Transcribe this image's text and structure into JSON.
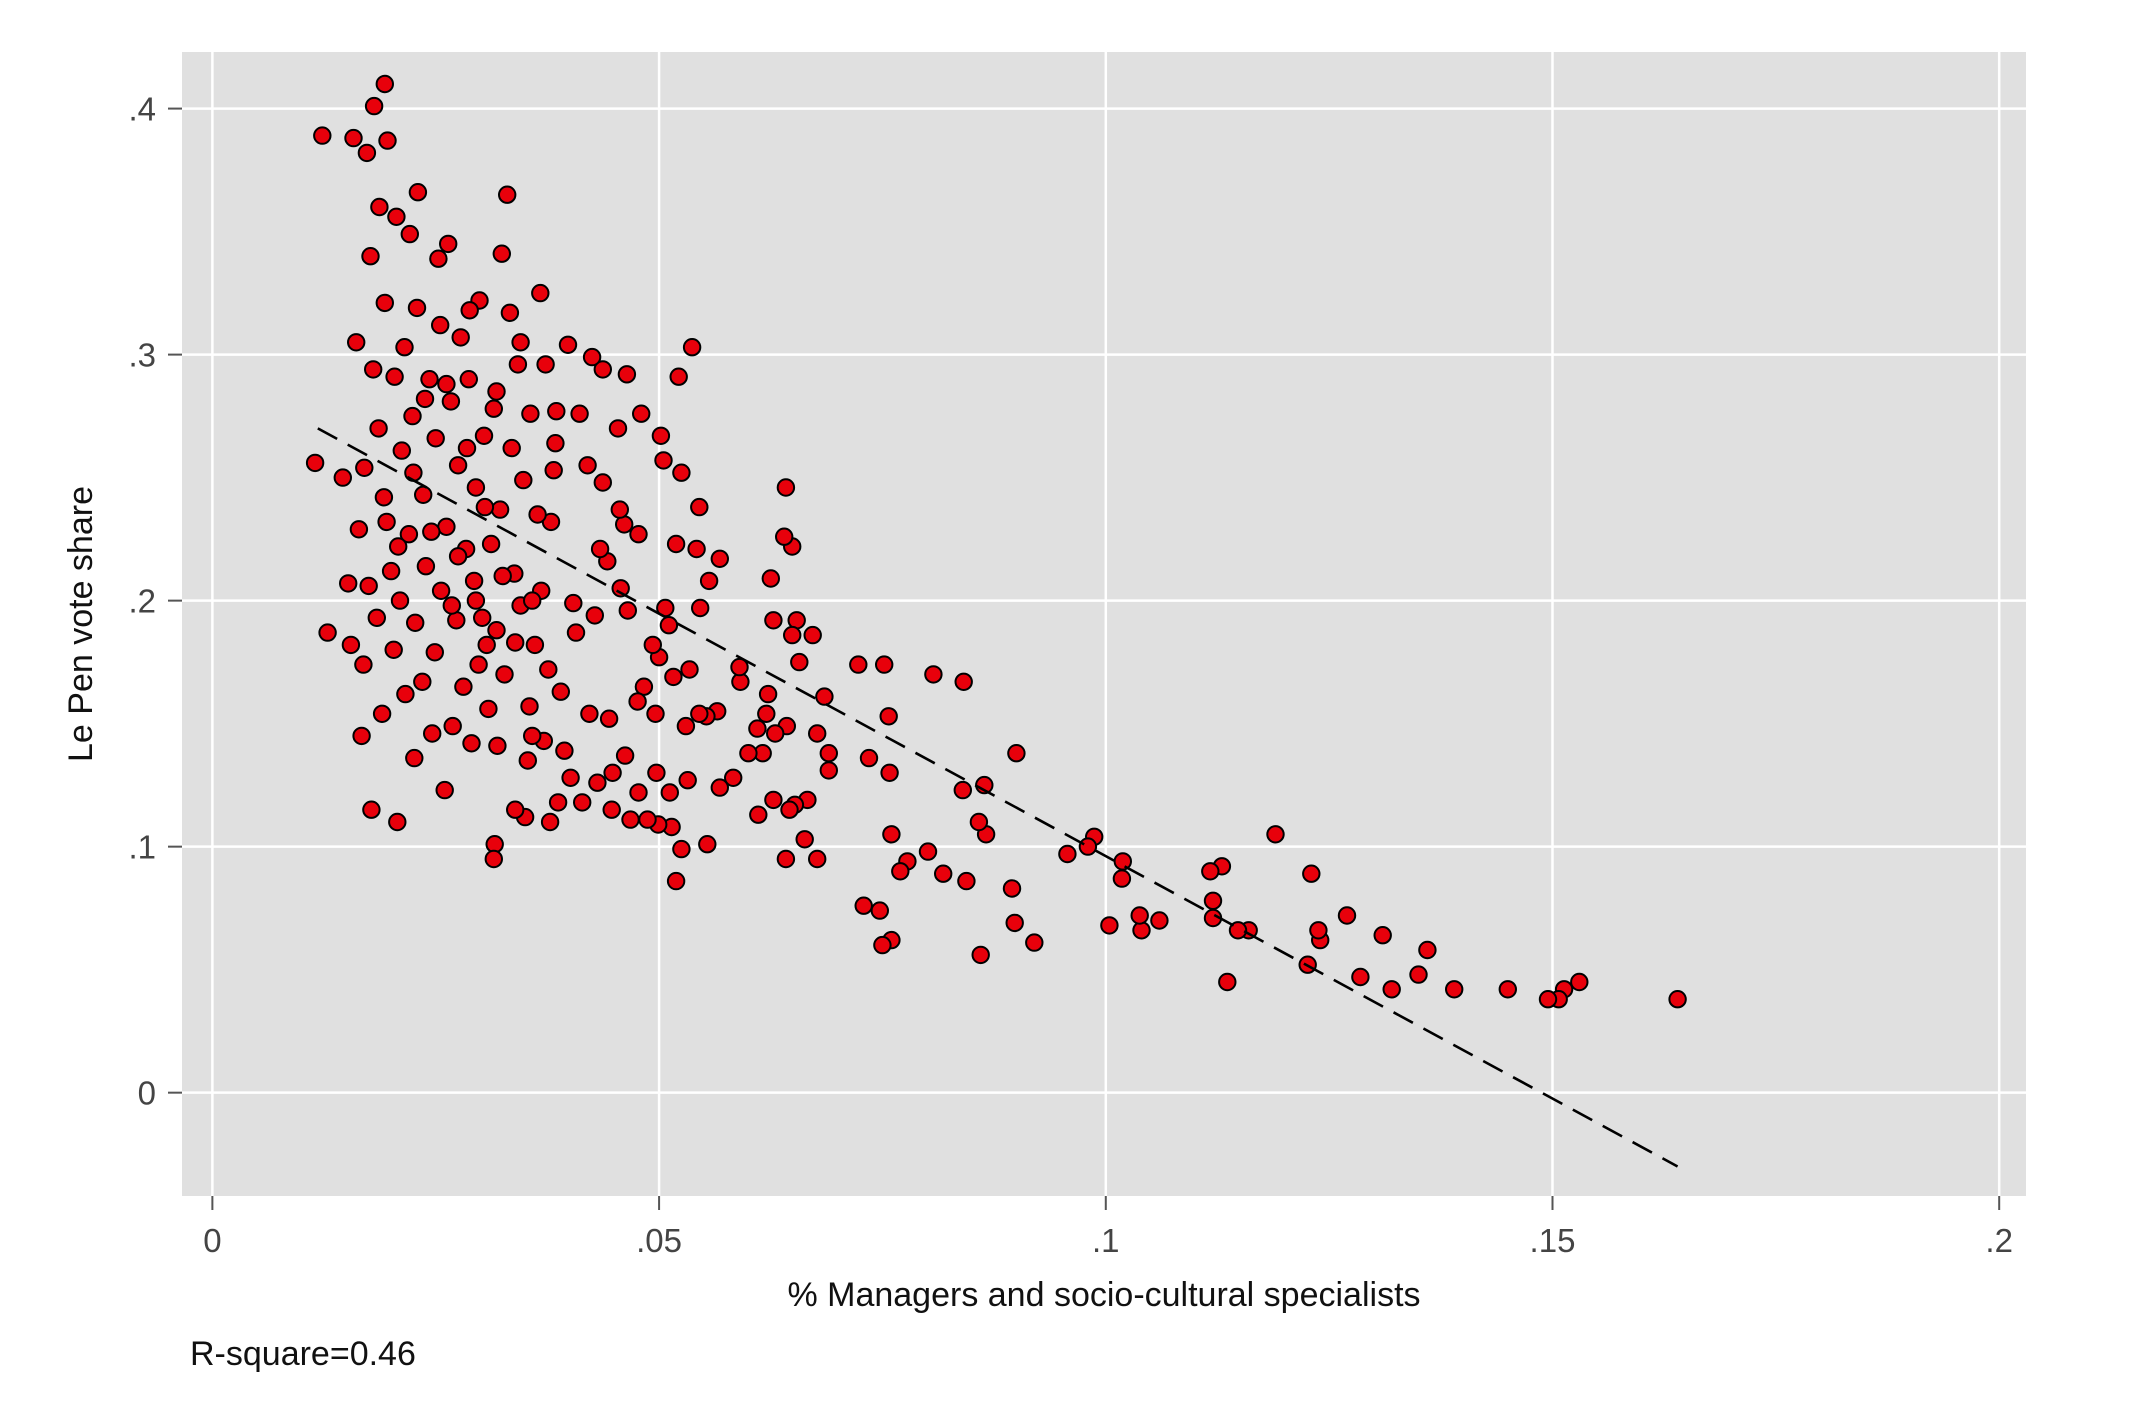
{
  "chart_data": {
    "type": "scatter",
    "title": "",
    "xlabel": "% Managers and socio-cultural specialists",
    "ylabel": "Le Pen vote share",
    "note": "R-square=0.46",
    "xlim": [
      -0.0034,
      0.203
    ],
    "ylim": [
      -0.042,
      0.423
    ],
    "xticks": [
      0,
      0.05,
      0.1,
      0.15,
      0.2
    ],
    "xtick_labels": [
      "0",
      ".05",
      ".1",
      ".15",
      ".2"
    ],
    "yticks": [
      0,
      0.1,
      0.2,
      0.3,
      0.4
    ],
    "ytick_labels": [
      "0",
      ".1",
      ".2",
      ".3",
      ".4"
    ],
    "grid": true,
    "colors": {
      "marker": "#e8000b",
      "marker_edge": "#000000",
      "plot_bg": "#e0e0e0",
      "grid": "#ffffff",
      "fit_line": "#000000"
    },
    "fit_line": {
      "style": "dashed",
      "x": [
        0.0118,
        0.164
      ],
      "y": [
        0.27,
        -0.03
      ]
    },
    "points": [
      [
        0.164,
        0.038
      ],
      [
        0.153,
        0.045
      ],
      [
        0.1513,
        0.042
      ],
      [
        0.1507,
        0.038
      ],
      [
        0.1495,
        0.038
      ],
      [
        0.145,
        0.042
      ],
      [
        0.139,
        0.042
      ],
      [
        0.136,
        0.058
      ],
      [
        0.135,
        0.048
      ],
      [
        0.132,
        0.042
      ],
      [
        0.131,
        0.064
      ],
      [
        0.1285,
        0.047
      ],
      [
        0.127,
        0.072
      ],
      [
        0.124,
        0.062
      ],
      [
        0.1238,
        0.066
      ],
      [
        0.123,
        0.089
      ],
      [
        0.1226,
        0.052
      ],
      [
        0.119,
        0.105
      ],
      [
        0.116,
        0.066
      ],
      [
        0.1148,
        0.066
      ],
      [
        0.1136,
        0.045
      ],
      [
        0.113,
        0.092
      ],
      [
        0.112,
        0.071
      ],
      [
        0.112,
        0.078
      ],
      [
        0.1117,
        0.09
      ],
      [
        0.106,
        0.07
      ],
      [
        0.104,
        0.066
      ],
      [
        0.1038,
        0.072
      ],
      [
        0.1018,
        0.087
      ],
      [
        0.1019,
        0.094
      ],
      [
        0.1004,
        0.068
      ],
      [
        0.0987,
        0.104
      ],
      [
        0.098,
        0.1
      ],
      [
        0.0957,
        0.097
      ],
      [
        0.092,
        0.061
      ],
      [
        0.09,
        0.138
      ],
      [
        0.0898,
        0.069
      ],
      [
        0.0895,
        0.083
      ],
      [
        0.0866,
        0.105
      ],
      [
        0.0864,
        0.125
      ],
      [
        0.0858,
        0.11
      ],
      [
        0.086,
        0.056
      ],
      [
        0.0844,
        0.086
      ],
      [
        0.0841,
        0.167
      ],
      [
        0.084,
        0.123
      ],
      [
        0.0818,
        0.089
      ],
      [
        0.0807,
        0.17
      ],
      [
        0.0801,
        0.098
      ],
      [
        0.0778,
        0.094
      ],
      [
        0.077,
        0.09
      ],
      [
        0.076,
        0.105
      ],
      [
        0.0758,
        0.13
      ],
      [
        0.0757,
        0.153
      ],
      [
        0.0752,
        0.174
      ],
      [
        0.076,
        0.062
      ],
      [
        0.075,
        0.06
      ],
      [
        0.0747,
        0.074
      ],
      [
        0.0735,
        0.136
      ],
      [
        0.0729,
        0.076
      ],
      [
        0.0723,
        0.174
      ],
      [
        0.069,
        0.138
      ],
      [
        0.069,
        0.131
      ],
      [
        0.0685,
        0.161
      ],
      [
        0.0677,
        0.095
      ],
      [
        0.0677,
        0.146
      ],
      [
        0.0672,
        0.186
      ],
      [
        0.0666,
        0.119
      ],
      [
        0.0663,
        0.103
      ],
      [
        0.0657,
        0.175
      ],
      [
        0.0654,
        0.192
      ],
      [
        0.0652,
        0.117
      ],
      [
        0.0649,
        0.186
      ],
      [
        0.0649,
        0.222
      ],
      [
        0.0646,
        0.115
      ],
      [
        0.0642,
        0.246
      ],
      [
        0.064,
        0.226
      ],
      [
        0.0643,
        0.149
      ],
      [
        0.0642,
        0.095
      ],
      [
        0.063,
        0.146
      ],
      [
        0.0628,
        0.119
      ],
      [
        0.0628,
        0.192
      ],
      [
        0.0625,
        0.209
      ],
      [
        0.0622,
        0.162
      ],
      [
        0.062,
        0.154
      ],
      [
        0.0616,
        0.138
      ],
      [
        0.0611,
        0.113
      ],
      [
        0.061,
        0.148
      ],
      [
        0.06,
        0.138
      ],
      [
        0.0591,
        0.167
      ],
      [
        0.059,
        0.173
      ],
      [
        0.0583,
        0.128
      ],
      [
        0.0568,
        0.124
      ],
      [
        0.0568,
        0.217
      ],
      [
        0.0565,
        0.155
      ],
      [
        0.0556,
        0.208
      ],
      [
        0.0554,
        0.101
      ],
      [
        0.0553,
        0.153
      ],
      [
        0.0546,
        0.197
      ],
      [
        0.0545,
        0.154
      ],
      [
        0.0545,
        0.238
      ],
      [
        0.0542,
        0.221
      ],
      [
        0.0537,
        0.303
      ],
      [
        0.0534,
        0.172
      ],
      [
        0.0532,
        0.127
      ],
      [
        0.053,
        0.149
      ],
      [
        0.0525,
        0.099
      ],
      [
        0.0525,
        0.252
      ],
      [
        0.0522,
        0.291
      ],
      [
        0.0519,
        0.086
      ],
      [
        0.0516,
        0.169
      ],
      [
        0.0514,
        0.108
      ],
      [
        0.0512,
        0.122
      ],
      [
        0.0519,
        0.223
      ],
      [
        0.0511,
        0.19
      ],
      [
        0.0507,
        0.197
      ],
      [
        0.0505,
        0.257
      ],
      [
        0.0502,
        0.267
      ],
      [
        0.05,
        0.177
      ],
      [
        0.0499,
        0.109
      ],
      [
        0.0497,
        0.13
      ],
      [
        0.0496,
        0.154
      ],
      [
        0.0493,
        0.182
      ],
      [
        0.0487,
        0.111
      ],
      [
        0.0483,
        0.165
      ],
      [
        0.048,
        0.276
      ],
      [
        0.0477,
        0.122
      ],
      [
        0.0477,
        0.227
      ],
      [
        0.0476,
        0.159
      ],
      [
        0.0468,
        0.111
      ],
      [
        0.0465,
        0.196
      ],
      [
        0.0464,
        0.292
      ],
      [
        0.0462,
        0.137
      ],
      [
        0.0461,
        0.231
      ],
      [
        0.0457,
        0.205
      ],
      [
        0.0456,
        0.237
      ],
      [
        0.0454,
        0.27
      ],
      [
        0.0448,
        0.13
      ],
      [
        0.0447,
        0.115
      ],
      [
        0.0444,
        0.152
      ],
      [
        0.0442,
        0.216
      ],
      [
        0.0437,
        0.294
      ],
      [
        0.0437,
        0.248
      ],
      [
        0.0434,
        0.221
      ],
      [
        0.0431,
        0.126
      ],
      [
        0.0428,
        0.194
      ],
      [
        0.0425,
        0.299
      ],
      [
        0.0422,
        0.154
      ],
      [
        0.042,
        0.255
      ],
      [
        0.0414,
        0.118
      ],
      [
        0.0411,
        0.276
      ],
      [
        0.0407,
        0.187
      ],
      [
        0.0404,
        0.199
      ],
      [
        0.0401,
        0.128
      ],
      [
        0.0398,
        0.304
      ],
      [
        0.0394,
        0.139
      ],
      [
        0.039,
        0.163
      ],
      [
        0.0387,
        0.118
      ],
      [
        0.0385,
        0.277
      ],
      [
        0.0384,
        0.264
      ],
      [
        0.0382,
        0.253
      ],
      [
        0.0379,
        0.232
      ],
      [
        0.0378,
        0.11
      ],
      [
        0.0376,
        0.172
      ],
      [
        0.0373,
        0.296
      ],
      [
        0.0371,
        0.143
      ],
      [
        0.0368,
        0.204
      ],
      [
        0.0367,
        0.325
      ],
      [
        0.0364,
        0.235
      ],
      [
        0.0361,
        0.182
      ],
      [
        0.0358,
        0.145
      ],
      [
        0.0356,
        0.276
      ],
      [
        0.0355,
        0.157
      ],
      [
        0.0353,
        0.135
      ],
      [
        0.035,
        0.112
      ],
      [
        0.0348,
        0.249
      ],
      [
        0.0345,
        0.198
      ],
      [
        0.0342,
        0.296
      ],
      [
        0.0339,
        0.115
      ],
      [
        0.0339,
        0.183
      ],
      [
        0.0338,
        0.211
      ],
      [
        0.0333,
        0.317
      ],
      [
        0.033,
        0.365
      ],
      [
        0.0327,
        0.17
      ],
      [
        0.0324,
        0.341
      ],
      [
        0.0322,
        0.237
      ],
      [
        0.0319,
        0.141
      ],
      [
        0.0318,
        0.285
      ],
      [
        0.0316,
        0.101
      ],
      [
        0.0315,
        0.095
      ],
      [
        0.0312,
        0.223
      ],
      [
        0.0309,
        0.156
      ],
      [
        0.0307,
        0.182
      ],
      [
        0.0304,
        0.267
      ],
      [
        0.0302,
        0.193
      ],
      [
        0.0299,
        0.322
      ],
      [
        0.0298,
        0.174
      ],
      [
        0.0295,
        0.246
      ],
      [
        0.0293,
        0.208
      ],
      [
        0.029,
        0.142
      ],
      [
        0.0287,
        0.29
      ],
      [
        0.0284,
        0.221
      ],
      [
        0.0281,
        0.165
      ],
      [
        0.0278,
        0.307
      ],
      [
        0.0275,
        0.255
      ],
      [
        0.0273,
        0.192
      ],
      [
        0.0269,
        0.149
      ],
      [
        0.0267,
        0.281
      ],
      [
        0.0264,
        0.345
      ],
      [
        0.0262,
        0.23
      ],
      [
        0.026,
        0.123
      ],
      [
        0.0256,
        0.204
      ],
      [
        0.0253,
        0.339
      ],
      [
        0.025,
        0.266
      ],
      [
        0.0249,
        0.179
      ],
      [
        0.0246,
        0.146
      ],
      [
        0.0243,
        0.29
      ],
      [
        0.0239,
        0.214
      ],
      [
        0.0236,
        0.243
      ],
      [
        0.0235,
        0.167
      ],
      [
        0.023,
        0.366
      ],
      [
        0.0229,
        0.319
      ],
      [
        0.0227,
        0.191
      ],
      [
        0.0226,
        0.136
      ],
      [
        0.0224,
        0.275
      ],
      [
        0.0221,
        0.349
      ],
      [
        0.022,
        0.227
      ],
      [
        0.0216,
        0.162
      ],
      [
        0.0215,
        0.303
      ],
      [
        0.0212,
        0.261
      ],
      [
        0.021,
        0.2
      ],
      [
        0.0207,
        0.11
      ],
      [
        0.0206,
        0.356
      ],
      [
        0.0204,
        0.291
      ],
      [
        0.0203,
        0.18
      ],
      [
        0.02,
        0.212
      ],
      [
        0.0196,
        0.387
      ],
      [
        0.0193,
        0.41
      ],
      [
        0.0193,
        0.321
      ],
      [
        0.0192,
        0.242
      ],
      [
        0.019,
        0.154
      ],
      [
        0.0187,
        0.36
      ],
      [
        0.0186,
        0.27
      ],
      [
        0.0184,
        0.193
      ],
      [
        0.0181,
        0.401
      ],
      [
        0.018,
        0.294
      ],
      [
        0.0178,
        0.115
      ],
      [
        0.0177,
        0.34
      ],
      [
        0.0175,
        0.206
      ],
      [
        0.0173,
        0.382
      ],
      [
        0.017,
        0.254
      ],
      [
        0.0169,
        0.174
      ],
      [
        0.0167,
        0.145
      ],
      [
        0.0164,
        0.229
      ],
      [
        0.0161,
        0.305
      ],
      [
        0.0158,
        0.388
      ],
      [
        0.0155,
        0.182
      ],
      [
        0.0152,
        0.207
      ],
      [
        0.0146,
        0.25
      ],
      [
        0.0129,
        0.187
      ],
      [
        0.0123,
        0.389
      ],
      [
        0.0115,
        0.256
      ],
      [
        0.0262,
        0.288
      ],
      [
        0.0285,
        0.262
      ],
      [
        0.0315,
        0.278
      ],
      [
        0.0245,
        0.228
      ],
      [
        0.0275,
        0.218
      ],
      [
        0.0305,
        0.238
      ],
      [
        0.0335,
        0.262
      ],
      [
        0.0225,
        0.252
      ],
      [
        0.0295,
        0.2
      ],
      [
        0.0325,
        0.21
      ],
      [
        0.0195,
        0.232
      ],
      [
        0.0255,
        0.312
      ],
      [
        0.0345,
        0.305
      ],
      [
        0.0288,
        0.318
      ],
      [
        0.0238,
        0.282
      ],
      [
        0.0268,
        0.198
      ],
      [
        0.0318,
        0.188
      ],
      [
        0.0208,
        0.222
      ],
      [
        0.0358,
        0.2
      ]
    ]
  }
}
